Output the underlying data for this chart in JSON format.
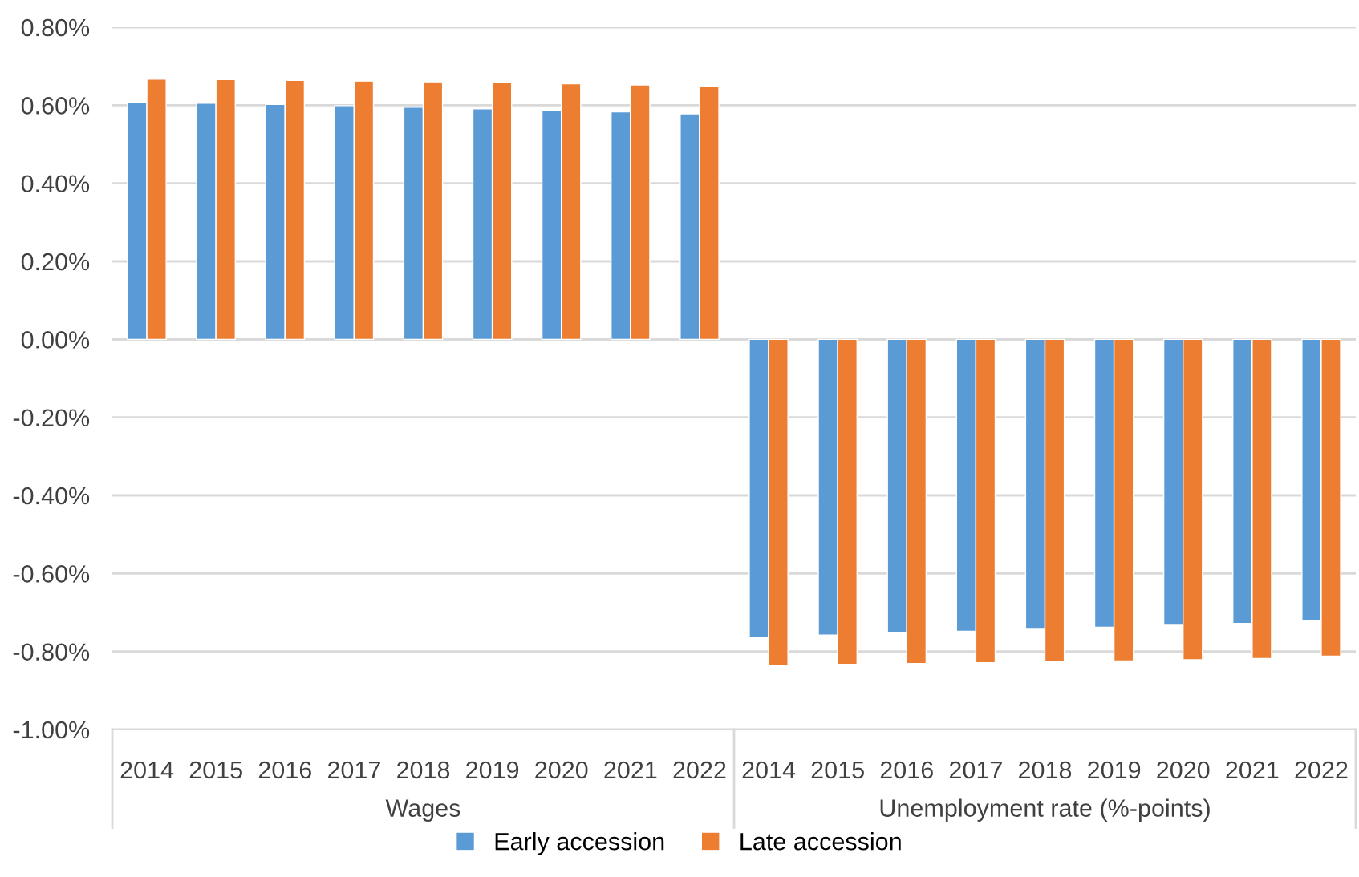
{
  "chart_data": {
    "type": "bar",
    "categories": [
      "2014",
      "2015",
      "2016",
      "2017",
      "2018",
      "2019",
      "2020",
      "2021",
      "2022",
      "2014",
      "2015",
      "2016",
      "2017",
      "2018",
      "2019",
      "2020",
      "2021",
      "2022"
    ],
    "series": [
      {
        "name": "Early accession",
        "color": "#5b9bd5",
        "values": [
          0.607,
          0.605,
          0.602,
          0.599,
          0.595,
          0.591,
          0.587,
          0.583,
          0.578,
          -0.763,
          -0.758,
          -0.753,
          -0.748,
          -0.743,
          -0.738,
          -0.733,
          -0.728,
          -0.722
        ]
      },
      {
        "name": "Late accession",
        "color": "#ed7d31",
        "values": [
          0.667,
          0.666,
          0.664,
          0.662,
          0.66,
          0.658,
          0.655,
          0.652,
          0.649,
          -0.835,
          -0.833,
          -0.831,
          -0.829,
          -0.826,
          -0.824,
          -0.821,
          -0.818,
          -0.812
        ]
      }
    ],
    "ylim": [
      -1.0,
      0.8
    ],
    "yticks": [
      {
        "value": -1.0,
        "label": "-1.00%"
      },
      {
        "value": -0.8,
        "label": "-0.80%"
      },
      {
        "value": -0.6,
        "label": "-0.60%"
      },
      {
        "value": -0.4,
        "label": "-0.40%"
      },
      {
        "value": -0.2,
        "label": "-0.20%"
      },
      {
        "value": 0.0,
        "label": "0.00%"
      },
      {
        "value": 0.2,
        "label": "0.20%"
      },
      {
        "value": 0.4,
        "label": "0.40%"
      },
      {
        "value": 0.6,
        "label": "0.60%"
      },
      {
        "value": 0.8,
        "label": "0.80%"
      }
    ],
    "annotations": [
      "Wages",
      "Unemployment rate (%-points)"
    ],
    "grid": "y",
    "legend": "bottom"
  }
}
